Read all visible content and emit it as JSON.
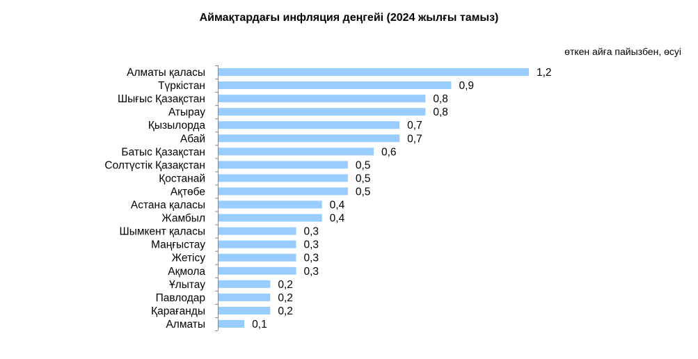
{
  "chart_data": {
    "type": "bar",
    "orientation": "horizontal",
    "title": "Аймақтардағы инфляция деңгейі (2024 жылғы тамыз)",
    "units_note": "өткен айға пайызбен, өсуі",
    "categories": [
      "Алматы қаласы",
      "Түркістан",
      "Шығыс Қазақстан",
      "Атырау",
      "Қызылорда",
      "Абай",
      "Батыс Қазақстан",
      "Солтүстік Қазақстан",
      "Қостанай",
      "Ақтөбе",
      "Астана қаласы",
      "Жамбыл",
      "Шымкент қаласы",
      "Маңғыстау",
      "Жетісу",
      "Ақмола",
      "Ұлытау",
      "Павлодар",
      "Қарағанды",
      "Алматы"
    ],
    "values": [
      1.2,
      0.9,
      0.8,
      0.8,
      0.7,
      0.7,
      0.6,
      0.5,
      0.5,
      0.5,
      0.4,
      0.4,
      0.3,
      0.3,
      0.3,
      0.3,
      0.2,
      0.2,
      0.2,
      0.1
    ],
    "value_labels": [
      "1,2",
      "0,9",
      "0,8",
      "0,8",
      "0,7",
      "0,7",
      "0,6",
      "0,5",
      "0,5",
      "0,5",
      "0,4",
      "0,4",
      "0,3",
      "0,3",
      "0,3",
      "0,3",
      "0,2",
      "0,2",
      "0,2",
      "0,1"
    ],
    "xlim": [
      0,
      1.2
    ],
    "bar_color": "#99ccff",
    "axis_color": "#868686",
    "grid": false,
    "legend": "none"
  }
}
